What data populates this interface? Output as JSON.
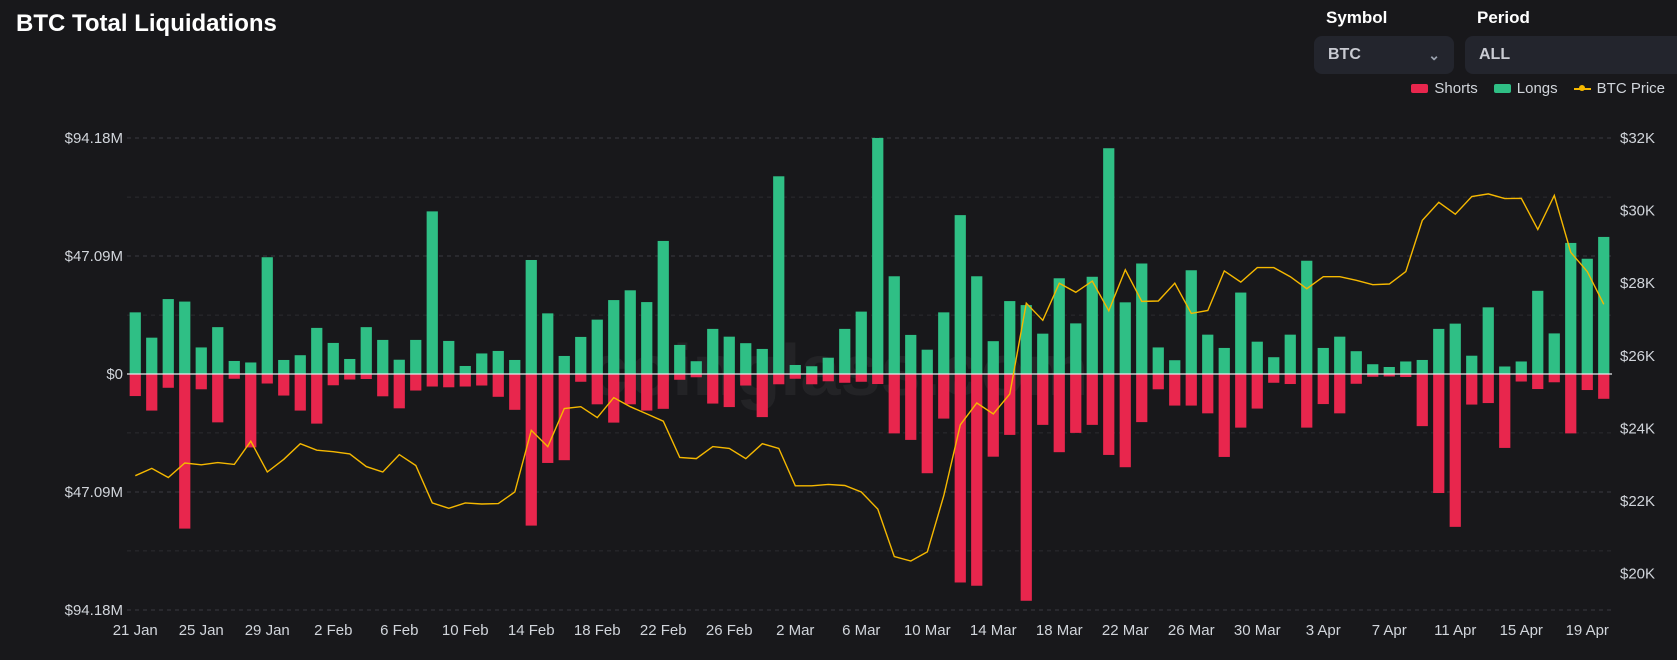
{
  "header": {
    "title": "BTC Total Liquidations"
  },
  "controls": {
    "symbol_label": "Symbol",
    "symbol_value": "BTC",
    "period_label": "Period",
    "period_value": "ALL"
  },
  "legend": {
    "shorts": "Shorts",
    "longs": "Longs",
    "price": "BTC Price"
  },
  "watermark": "coinglass.com",
  "colors": {
    "shorts": "#e8264d",
    "longs": "#2fbf85",
    "price": "#f5b800",
    "background": "#18181b"
  },
  "chart_data": {
    "type": "bar",
    "title": "BTC Total Liquidations",
    "grid": true,
    "legend_position": "top-right",
    "categories": [
      "21 Jan",
      "22 Jan",
      "23 Jan",
      "24 Jan",
      "25 Jan",
      "26 Jan",
      "27 Jan",
      "28 Jan",
      "29 Jan",
      "30 Jan",
      "31 Jan",
      "1 Feb",
      "2 Feb",
      "3 Feb",
      "4 Feb",
      "5 Feb",
      "6 Feb",
      "7 Feb",
      "8 Feb",
      "9 Feb",
      "10 Feb",
      "11 Feb",
      "12 Feb",
      "13 Feb",
      "14 Feb",
      "15 Feb",
      "16 Feb",
      "17 Feb",
      "18 Feb",
      "19 Feb",
      "20 Feb",
      "21 Feb",
      "22 Feb",
      "23 Feb",
      "24 Feb",
      "25 Feb",
      "26 Feb",
      "27 Feb",
      "28 Feb",
      "1 Mar",
      "2 Mar",
      "3 Mar",
      "4 Mar",
      "5 Mar",
      "6 Mar",
      "7 Mar",
      "8 Mar",
      "9 Mar",
      "10 Mar",
      "11 Mar",
      "12 Mar",
      "13 Mar",
      "14 Mar",
      "15 Mar",
      "16 Mar",
      "17 Mar",
      "18 Mar",
      "19 Mar",
      "20 Mar",
      "21 Mar",
      "22 Mar",
      "23 Mar",
      "24 Mar",
      "25 Mar",
      "26 Mar",
      "27 Mar",
      "28 Mar",
      "29 Mar",
      "30 Mar",
      "31 Mar",
      "1 Apr",
      "2 Apr",
      "3 Apr",
      "4 Apr",
      "5 Apr",
      "6 Apr",
      "7 Apr",
      "8 Apr",
      "9 Apr",
      "10 Apr",
      "11 Apr",
      "12 Apr",
      "13 Apr",
      "14 Apr",
      "15 Apr",
      "16 Apr",
      "17 Apr",
      "18 Apr",
      "19 Apr",
      "20 Apr"
    ],
    "x_tick_labels": [
      "21 Jan",
      "25 Jan",
      "29 Jan",
      "2 Feb",
      "6 Feb",
      "10 Feb",
      "14 Feb",
      "18 Feb",
      "22 Feb",
      "26 Feb",
      "2 Mar",
      "6 Mar",
      "10 Mar",
      "14 Mar",
      "18 Mar",
      "22 Mar",
      "26 Mar",
      "30 Mar",
      "3 Apr",
      "7 Apr",
      "11 Apr",
      "15 Apr",
      "19 Apr"
    ],
    "y_left": {
      "ylim": [
        -94.18,
        94.18
      ],
      "unit": "$M",
      "ticks": [
        94.18,
        47.09,
        0,
        -47.09,
        -94.18
      ],
      "tick_labels": [
        "$94.18M",
        "$47.09M",
        "$0",
        "$47.09M",
        "$94.18M"
      ]
    },
    "y_right": {
      "ylim": [
        19000,
        32000
      ],
      "ticks": [
        32000,
        30000,
        28000,
        26000,
        24000,
        22000,
        20000
      ],
      "tick_labels": [
        "$32K",
        "$30K",
        "$28K",
        "$26K",
        "$24K",
        "$22K",
        "$20K"
      ]
    },
    "series": [
      {
        "name": "Longs",
        "type": "bar",
        "axis": "left",
        "values": [
          24.6,
          14.5,
          29.9,
          28.9,
          10.6,
          18.7,
          5.2,
          4.6,
          46.6,
          5.6,
          7.5,
          18.4,
          12.4,
          6.0,
          18.7,
          13.6,
          5.7,
          13.6,
          64.9,
          13.2,
          3.2,
          8.2,
          9.2,
          5.6,
          45.5,
          24.2,
          7.2,
          14.8,
          21.7,
          29.5,
          33.4,
          28.7,
          53.1,
          11.6,
          5.1,
          18.0,
          14.9,
          12.3,
          10.0,
          78.9,
          3.6,
          3.1,
          6.5,
          18.0,
          24.9,
          94.2,
          39.0,
          15.6,
          9.7,
          24.6,
          63.4,
          39.0,
          13.1,
          29.1,
          27.5,
          16.1,
          38.2,
          20.2,
          38.8,
          90.1,
          28.6,
          44.1,
          10.6,
          5.5,
          41.4,
          15.7,
          10.4,
          32.5,
          12.9,
          6.7,
          15.7,
          45.2,
          10.4,
          14.9,
          9.1,
          3.9,
          2.8,
          5.0,
          5.6,
          18.0,
          20.1,
          7.3,
          26.6,
          3.0,
          5.0,
          33.2,
          16.2,
          52.3,
          46.0,
          54.7
        ]
      },
      {
        "name": "Shorts",
        "type": "bar",
        "axis": "left",
        "values": [
          -8.8,
          -14.6,
          -5.5,
          -61.7,
          -6.1,
          -19.3,
          -1.9,
          -29.3,
          -3.8,
          -8.6,
          -14.6,
          -19.8,
          -4.5,
          -2.2,
          -2.0,
          -8.9,
          -13.7,
          -6.6,
          -5.0,
          -5.3,
          -5.0,
          -4.6,
          -9.1,
          -14.3,
          -60.5,
          -35.5,
          -34.4,
          -3.1,
          -12.1,
          -19.4,
          -12.1,
          -14.6,
          -13.9,
          -2.3,
          -1.3,
          -11.8,
          -13.2,
          -4.6,
          -17.2,
          -4.1,
          -1.9,
          -4.1,
          -2.9,
          -3.5,
          -3.1,
          -4.0,
          -23.7,
          -26.3,
          -39.6,
          -17.8,
          -83.2,
          -84.5,
          -33.0,
          -24.3,
          -90.5,
          -20.3,
          -31.2,
          -23.5,
          -20.3,
          -32.3,
          -37.2,
          -19.2,
          -6.1,
          -12.6,
          -12.6,
          -15.7,
          -33.1,
          -21.4,
          -13.8,
          -3.5,
          -4.0,
          -21.4,
          -12.0,
          -15.7,
          -3.9,
          -1.1,
          -1.0,
          -1.2,
          -20.8,
          -47.5,
          -61.0,
          -12.2,
          -11.6,
          -29.5,
          -3.0,
          -6.0,
          -3.3,
          -23.7,
          -6.4,
          -9.9
        ]
      },
      {
        "name": "BTC Price",
        "type": "line",
        "axis": "right",
        "values": [
          22700,
          22900,
          22650,
          23050,
          23000,
          23060,
          23010,
          23650,
          22800,
          23150,
          23580,
          23400,
          23360,
          23300,
          22950,
          22800,
          23280,
          22980,
          21950,
          21800,
          21950,
          21920,
          21930,
          22250,
          23950,
          23500,
          24550,
          24600,
          24300,
          24850,
          24600,
          24400,
          24200,
          23200,
          23170,
          23500,
          23450,
          23170,
          23580,
          23450,
          22420,
          22420,
          22460,
          22430,
          22250,
          21780,
          20470,
          20350,
          20600,
          22150,
          24100,
          24700,
          24400,
          24950,
          27450,
          26980,
          28000,
          27750,
          28060,
          27240,
          28370,
          27500,
          27510,
          28000,
          27170,
          27250,
          28340,
          28030,
          28430,
          28430,
          28180,
          27850,
          28180,
          28180,
          28080,
          27960,
          27980,
          28320,
          29730,
          30230,
          29900,
          30390,
          30460,
          30330,
          30340,
          29480,
          30420,
          28850,
          28320,
          27420
        ]
      }
    ]
  }
}
